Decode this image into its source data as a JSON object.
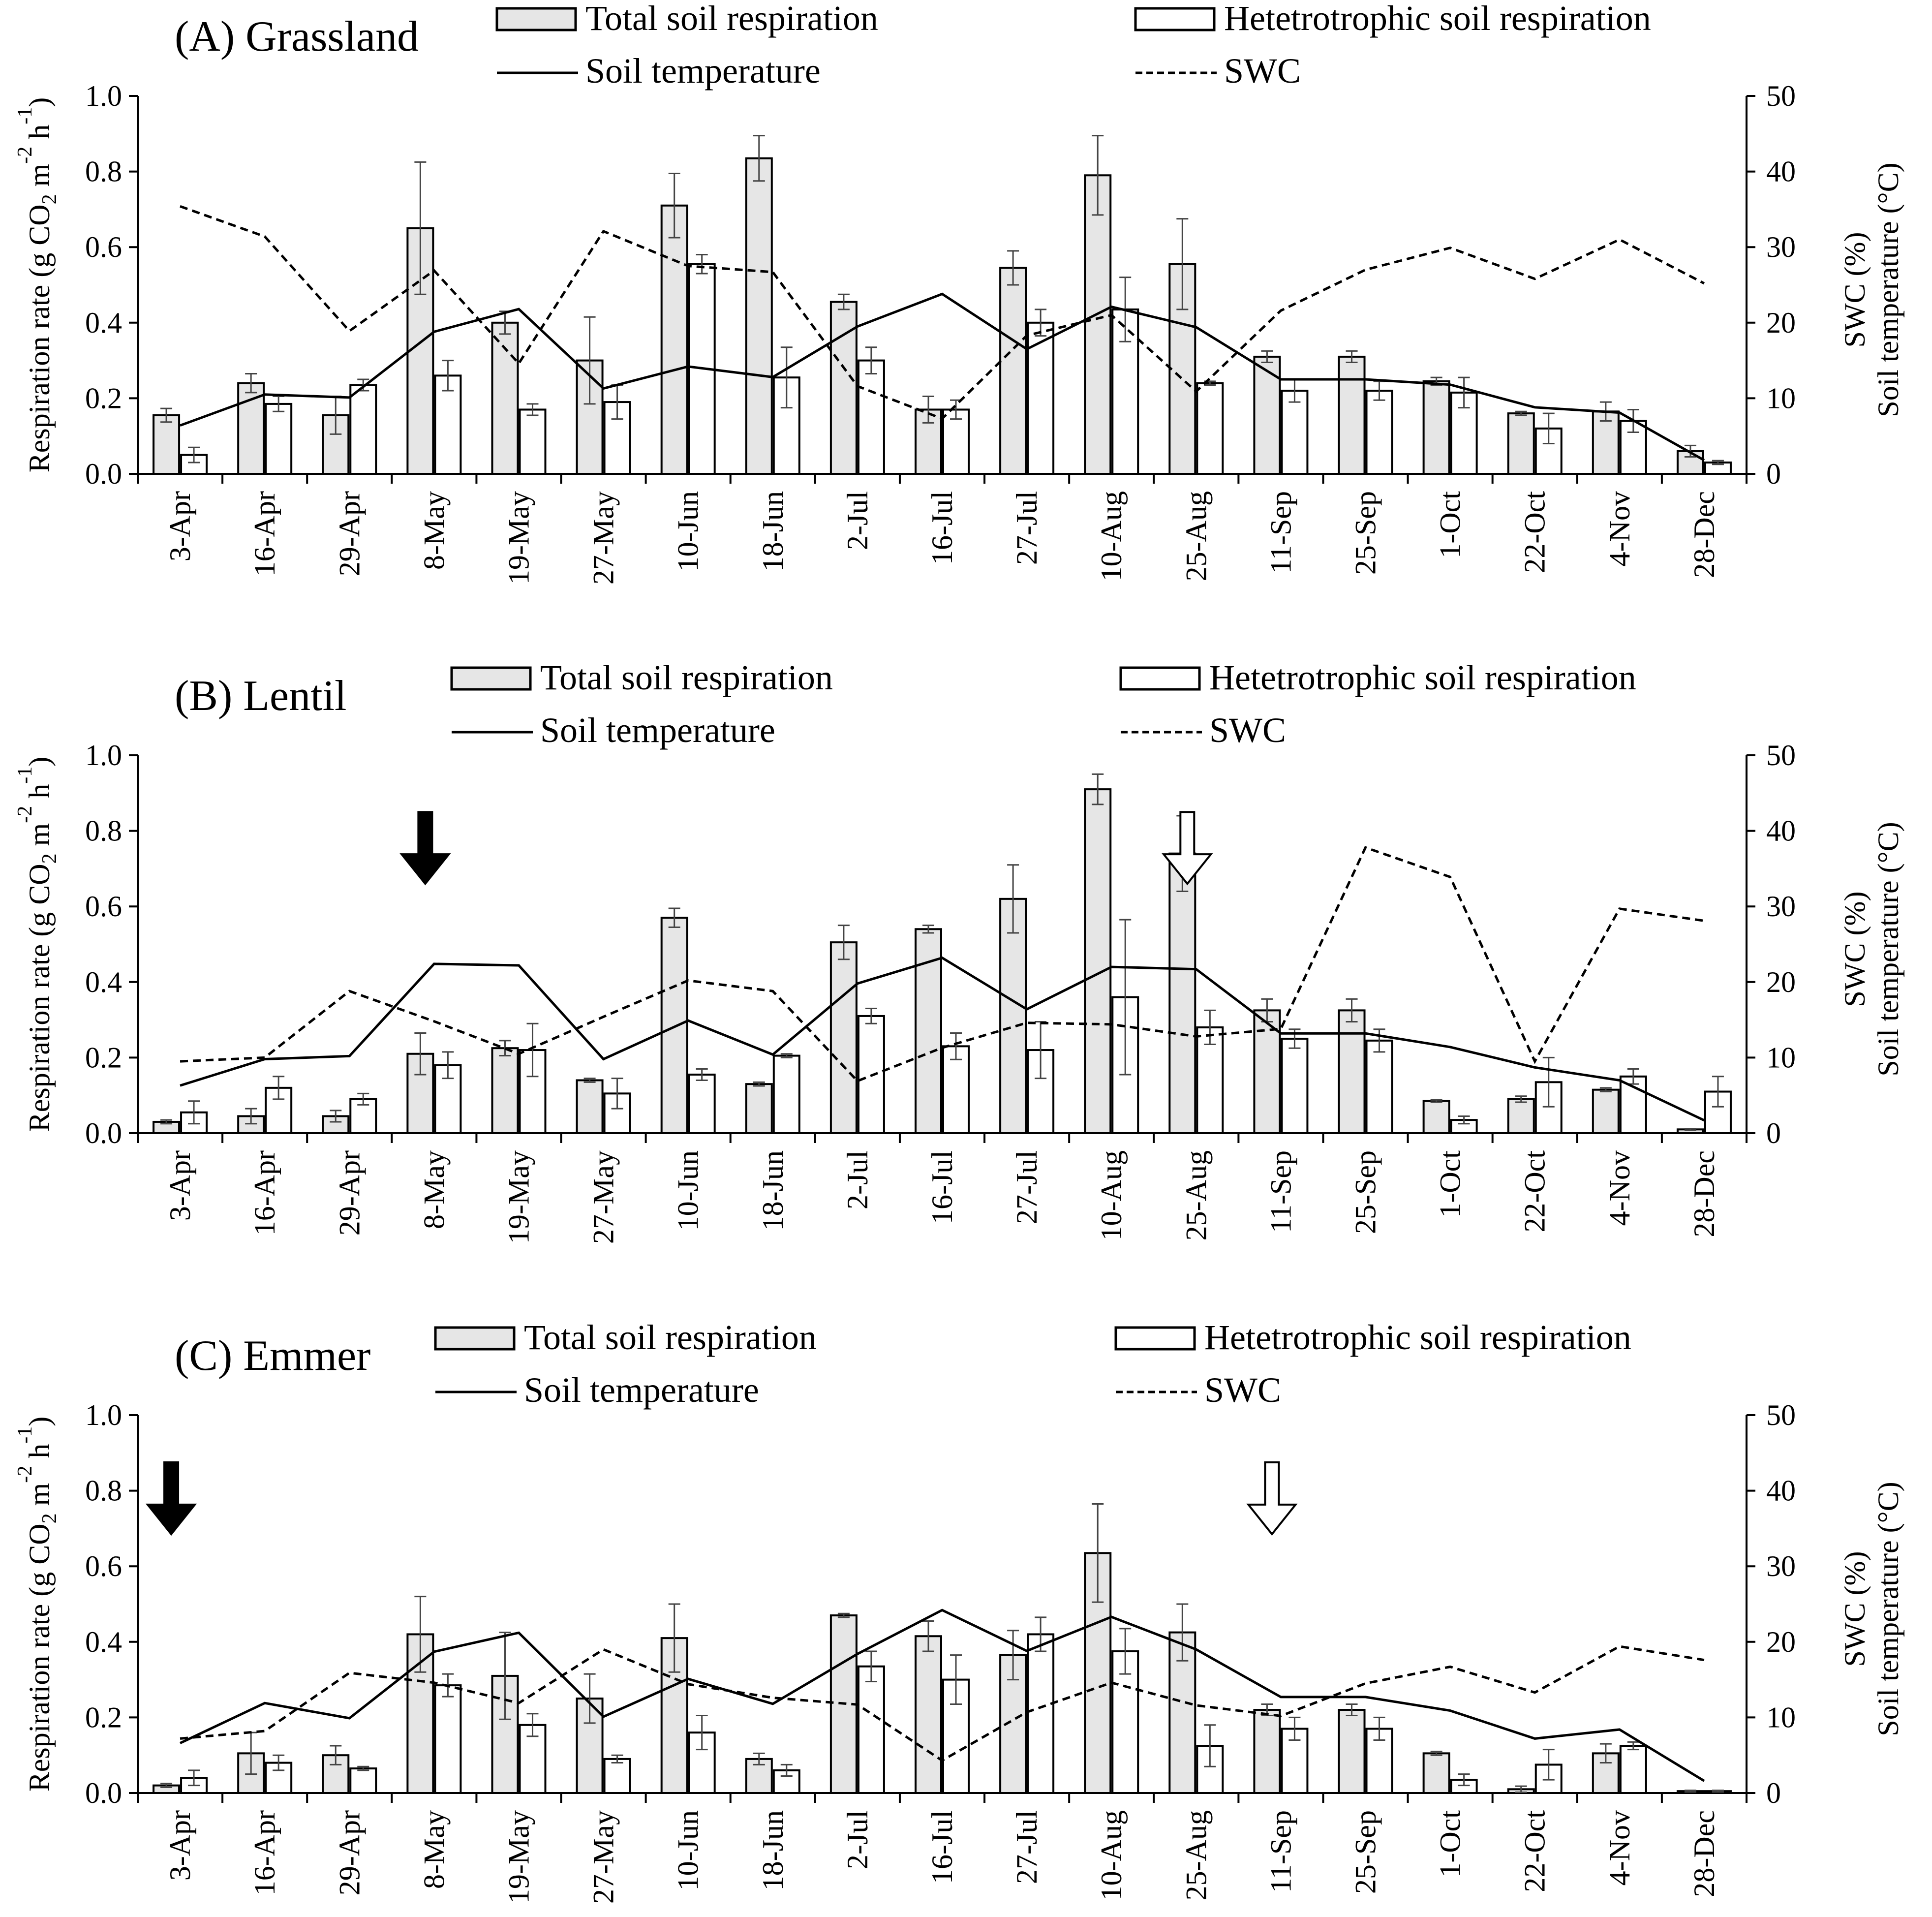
{
  "chart_data": [
    {
      "type": "bar",
      "title": "(A) Grassland",
      "categories": [
        "3-Apr",
        "16-Apr",
        "29-Apr",
        "8-May",
        "19-May",
        "27-May",
        "10-Jun",
        "18-Jun",
        "2-Jul",
        "16-Jul",
        "27-Jul",
        "10-Aug",
        "25-Aug",
        "11-Sep",
        "25-Sep",
        "1-Oct",
        "22-Oct",
        "4-Nov",
        "28-Dec"
      ],
      "ylabel": "Respiration rate (g CO₂ m⁻² h⁻¹)",
      "ylabel_parts": [
        "Respiration rate (g CO",
        "2",
        " m",
        "-2",
        " h",
        "-1",
        ")"
      ],
      "y2label": [
        "SWC (%)",
        "Soil temperature (°C)"
      ],
      "ylim": [
        0,
        1.0
      ],
      "y2lim": [
        0,
        50
      ],
      "yticks": [
        "0.0",
        "0.2",
        "0.4",
        "0.6",
        "0.8",
        "1.0"
      ],
      "y2ticks": [
        "0",
        "10",
        "20",
        "30",
        "40",
        "50"
      ],
      "legend": {
        "total": "Total soil respiration",
        "hetero": "Hetetrotrophic soil respiration",
        "temp": "Soil temperature",
        "swc": "SWC"
      },
      "series": [
        {
          "name": "Total soil respiration",
          "axis": "left",
          "kind": "bar",
          "color": "#e6e6e6",
          "values": [
            0.155,
            0.24,
            0.155,
            0.65,
            0.4,
            0.3,
            0.71,
            0.835,
            0.455,
            0.17,
            0.545,
            0.79,
            0.555,
            0.31,
            0.31,
            0.245,
            0.16,
            0.165,
            0.06
          ],
          "errors": [
            0.018,
            0.025,
            0.05,
            0.175,
            0.03,
            0.115,
            0.085,
            0.06,
            0.02,
            0.035,
            0.045,
            0.105,
            0.12,
            0.015,
            0.015,
            0.01,
            0.005,
            0.025,
            0.015
          ]
        },
        {
          "name": "Hetetrotrophic soil respiration",
          "axis": "left",
          "kind": "bar",
          "color": "#ffffff",
          "values": [
            0.05,
            0.185,
            0.235,
            0.26,
            0.17,
            0.19,
            0.555,
            0.255,
            0.3,
            0.17,
            0.4,
            0.435,
            0.24,
            0.22,
            0.22,
            0.215,
            0.12,
            0.14,
            0.03
          ],
          "errors": [
            0.02,
            0.02,
            0.015,
            0.04,
            0.015,
            0.045,
            0.025,
            0.08,
            0.035,
            0.025,
            0.035,
            0.085,
            0.005,
            0.03,
            0.025,
            0.04,
            0.04,
            0.03,
            0.005
          ]
        },
        {
          "name": "Soil temperature",
          "axis": "right",
          "kind": "line",
          "dash": "solid",
          "values": [
            6.4,
            10.5,
            10.1,
            18.8,
            21.8,
            11.3,
            14.2,
            12.8,
            19.5,
            23.8,
            16.5,
            22.1,
            19.4,
            12.5,
            12.5,
            11.8,
            8.8,
            8.1,
            1.8
          ]
        },
        {
          "name": "SWC",
          "axis": "right",
          "kind": "line",
          "dash": "dashed",
          "values": [
            35.4,
            31.4,
            18.9,
            26.9,
            14.6,
            32.1,
            27.5,
            26.7,
            11.6,
            7.3,
            18.3,
            21.0,
            10.9,
            21.6,
            27.0,
            29.9,
            25.8,
            31.0,
            25.2
          ]
        }
      ],
      "arrows": []
    },
    {
      "type": "bar",
      "title": "(B) Lentil",
      "categories": [
        "3-Apr",
        "16-Apr",
        "29-Apr",
        "8-May",
        "19-May",
        "27-May",
        "10-Jun",
        "18-Jun",
        "2-Jul",
        "16-Jul",
        "27-Jul",
        "10-Aug",
        "25-Aug",
        "11-Sep",
        "25-Sep",
        "1-Oct",
        "22-Oct",
        "4-Nov",
        "28-Dec"
      ],
      "ylabel": "Respiration rate (g CO₂ m⁻² h⁻¹)",
      "ylabel_parts": [
        "Respiration rate (g CO",
        "2",
        " m",
        "-2",
        " h",
        "-1",
        ")"
      ],
      "y2label": [
        "SWC (%)",
        "Soil temperature (°C)"
      ],
      "ylim": [
        0,
        1.0
      ],
      "y2lim": [
        0,
        50
      ],
      "yticks": [
        "0.0",
        "0.2",
        "0.4",
        "0.6",
        "0.8",
        "1.0"
      ],
      "y2ticks": [
        "0",
        "10",
        "20",
        "30",
        "40",
        "50"
      ],
      "legend": {
        "total": "Total soil respiration",
        "hetero": "Hetetrotrophic soil respiration",
        "temp": "Soil temperature",
        "swc": "SWC"
      },
      "series": [
        {
          "name": "Total soil respiration",
          "axis": "left",
          "kind": "bar",
          "color": "#e6e6e6",
          "values": [
            0.03,
            0.045,
            0.045,
            0.21,
            0.225,
            0.14,
            0.57,
            0.13,
            0.505,
            0.54,
            0.62,
            0.91,
            0.74,
            0.325,
            0.325,
            0.085,
            0.09,
            0.115,
            0.01
          ],
          "errors": [
            0.005,
            0.02,
            0.015,
            0.055,
            0.02,
            0.005,
            0.025,
            0.005,
            0.045,
            0.01,
            0.09,
            0.04,
            0.1,
            0.03,
            0.03,
            0.003,
            0.008,
            0.005,
            0.002
          ]
        },
        {
          "name": "Hetetrotrophic soil respiration",
          "axis": "left",
          "kind": "bar",
          "color": "#ffffff",
          "values": [
            0.055,
            0.12,
            0.09,
            0.18,
            0.22,
            0.105,
            0.155,
            0.205,
            0.31,
            0.23,
            0.22,
            0.36,
            0.28,
            0.25,
            0.245,
            0.035,
            0.135,
            0.15,
            0.11
          ],
          "errors": [
            0.03,
            0.03,
            0.015,
            0.035,
            0.07,
            0.04,
            0.015,
            0.005,
            0.02,
            0.035,
            0.075,
            0.205,
            0.045,
            0.025,
            0.03,
            0.01,
            0.065,
            0.02,
            0.04
          ]
        },
        {
          "name": "Soil temperature",
          "axis": "right",
          "kind": "line",
          "dash": "solid",
          "values": [
            6.3,
            9.8,
            10.2,
            22.4,
            22.2,
            9.8,
            14.9,
            10.4,
            19.8,
            23.2,
            16.4,
            22.0,
            21.7,
            13.2,
            13.2,
            11.4,
            8.7,
            7.0,
            1.7
          ]
        },
        {
          "name": "SWC",
          "axis": "right",
          "kind": "line",
          "dash": "dashed",
          "values": [
            9.5,
            10.0,
            18.8,
            14.8,
            10.5,
            15.4,
            20.2,
            18.8,
            6.9,
            11.3,
            14.6,
            14.4,
            12.8,
            13.8,
            37.8,
            33.9,
            9.5,
            29.7,
            28.1
          ]
        }
      ],
      "arrows": [
        {
          "at": "8-May",
          "style": "filled",
          "level": 0.69
        },
        {
          "at": "25-Aug",
          "style": "open",
          "level": 0.69
        }
      ]
    },
    {
      "type": "bar",
      "title": "(C) Emmer",
      "categories": [
        "3-Apr",
        "16-Apr",
        "29-Apr",
        "8-May",
        "19-May",
        "27-May",
        "10-Jun",
        "18-Jun",
        "2-Jul",
        "16-Jul",
        "27-Jul",
        "10-Aug",
        "25-Aug",
        "11-Sep",
        "25-Sep",
        "1-Oct",
        "22-Oct",
        "4-Nov",
        "28-Dec"
      ],
      "ylabel": "Respiration rate (g CO₂ m⁻² h⁻¹)",
      "ylabel_parts": [
        "Respiration rate (g CO",
        "2",
        " m",
        "-2",
        " h",
        "-1",
        ")"
      ],
      "y2label": [
        "SWC (%)",
        "Soil temperature (°C)"
      ],
      "ylim": [
        0,
        1.0
      ],
      "y2lim": [
        0,
        50
      ],
      "yticks": [
        "0.0",
        "0.2",
        "0.4",
        "0.6",
        "0.8",
        "1.0"
      ],
      "y2ticks": [
        "0",
        "10",
        "20",
        "30",
        "40",
        "50"
      ],
      "legend": {
        "total": "Total soil respiration",
        "hetero": "Hetetrotrophic soil respiration",
        "temp": "Soil temperature",
        "swc": "SWC"
      },
      "series": [
        {
          "name": "Total soil respiration",
          "axis": "left",
          "kind": "bar",
          "color": "#e6e6e6",
          "values": [
            0.02,
            0.105,
            0.1,
            0.42,
            0.31,
            0.25,
            0.41,
            0.09,
            0.47,
            0.415,
            0.365,
            0.635,
            0.425,
            0.22,
            0.22,
            0.105,
            0.01,
            0.105,
            0.005
          ],
          "errors": [
            0.005,
            0.055,
            0.025,
            0.1,
            0.115,
            0.065,
            0.09,
            0.015,
            0.005,
            0.04,
            0.065,
            0.13,
            0.075,
            0.015,
            0.015,
            0.005,
            0.008,
            0.025,
            0.002
          ]
        },
        {
          "name": "Hetetrotrophic soil respiration",
          "axis": "left",
          "kind": "bar",
          "color": "#ffffff",
          "values": [
            0.04,
            0.08,
            0.065,
            0.285,
            0.18,
            0.09,
            0.16,
            0.06,
            0.335,
            0.3,
            0.42,
            0.375,
            0.125,
            0.17,
            0.17,
            0.035,
            0.075,
            0.125,
            0.005
          ],
          "errors": [
            0.02,
            0.02,
            0.005,
            0.03,
            0.03,
            0.01,
            0.045,
            0.015,
            0.04,
            0.065,
            0.045,
            0.06,
            0.055,
            0.03,
            0.03,
            0.015,
            0.04,
            0.01,
            0.002
          ]
        },
        {
          "name": "Soil temperature",
          "axis": "right",
          "kind": "line",
          "dash": "solid",
          "values": [
            6.6,
            11.9,
            9.9,
            18.7,
            21.2,
            10.1,
            15.1,
            11.8,
            18.4,
            24.2,
            18.8,
            23.3,
            19.0,
            12.7,
            12.7,
            10.9,
            7.2,
            8.4,
            1.6
          ]
        },
        {
          "name": "SWC",
          "axis": "right",
          "kind": "line",
          "dash": "dashed",
          "values": [
            7.2,
            8.2,
            15.9,
            14.6,
            11.9,
            19.0,
            14.4,
            12.6,
            11.7,
            4.3,
            10.7,
            14.6,
            11.6,
            10.2,
            14.5,
            16.7,
            13.3,
            19.4,
            17.6
          ]
        }
      ],
      "arrows": [
        {
          "at": "3-Apr",
          "style": "filled",
          "level": 0.715
        },
        {
          "at": "11-Sep",
          "style": "open",
          "level": 0.715
        }
      ]
    }
  ]
}
